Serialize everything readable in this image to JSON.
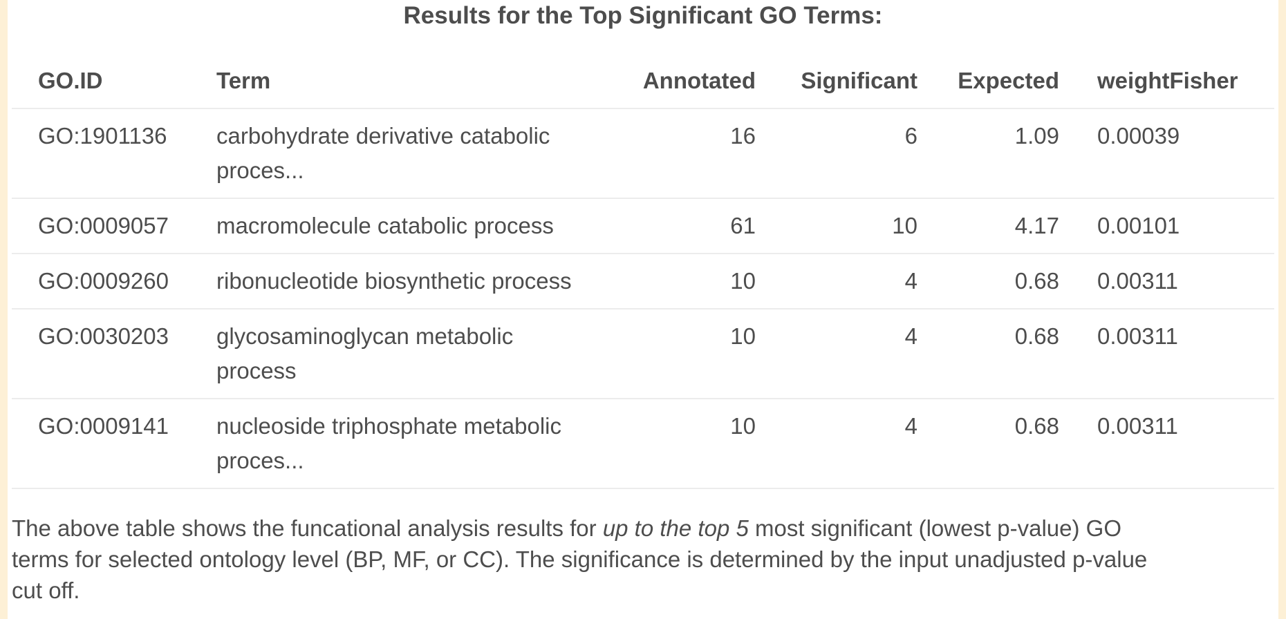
{
  "colors": {
    "page_background": "#ffffff",
    "edge_strip": "#fdf0d6",
    "text": "#4d4d4d",
    "row_divider": "#ececec"
  },
  "title": "Results for the Top Significant GO Terms:",
  "table": {
    "columns": [
      {
        "label": "GO.ID",
        "align": "left"
      },
      {
        "label": "Term",
        "align": "left"
      },
      {
        "label": "Annotated",
        "align": "right"
      },
      {
        "label": "Significant",
        "align": "right"
      },
      {
        "label": "Expected",
        "align": "right"
      },
      {
        "label": "weightFisher",
        "align": "left"
      }
    ],
    "rows": [
      {
        "go_id": "GO:1901136",
        "term": "carbohydrate derivative catabolic proces...",
        "annotated": "16",
        "significant": "6",
        "expected": "1.09",
        "weightFisher": "0.00039"
      },
      {
        "go_id": "GO:0009057",
        "term": "macromolecule catabolic process",
        "annotated": "61",
        "significant": "10",
        "expected": "4.17",
        "weightFisher": "0.00101"
      },
      {
        "go_id": "GO:0009260",
        "term": "ribonucleotide biosynthetic process",
        "annotated": "10",
        "significant": "4",
        "expected": "0.68",
        "weightFisher": "0.00311"
      },
      {
        "go_id": "GO:0030203",
        "term": "glycosaminoglycan metabolic process",
        "annotated": "10",
        "significant": "4",
        "expected": "0.68",
        "weightFisher": "0.00311"
      },
      {
        "go_id": "GO:0009141",
        "term": "nucleoside triphosphate metabolic proces...",
        "annotated": "10",
        "significant": "4",
        "expected": "0.68",
        "weightFisher": "0.00311"
      }
    ]
  },
  "footer": {
    "segments": [
      {
        "text": "The above table shows the funcational analysis results for ",
        "style": "normal"
      },
      {
        "text": "up to the top 5",
        "style": "italic"
      },
      {
        "text": " most significant (lowest p-value) GO terms for selected ontology level (BP, MF, or CC). The significance is determined by the input unadjusted p-value cut off.",
        "style": "normal"
      }
    ]
  }
}
